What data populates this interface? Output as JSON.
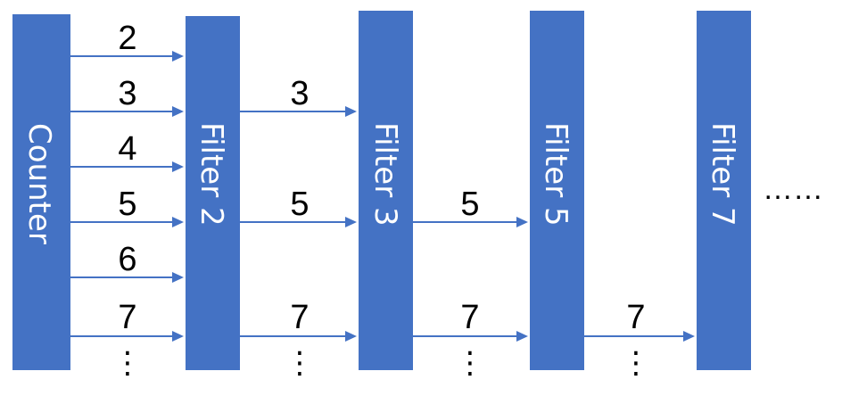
{
  "stages": [
    {
      "label": "Counter"
    },
    {
      "label": "Filter 2"
    },
    {
      "label": "Filter 3"
    },
    {
      "label": "Filter 5"
    },
    {
      "label": "Filter 7"
    }
  ],
  "links": [
    {
      "from": 0,
      "to": 1,
      "values": [
        "2",
        "3",
        "4",
        "5",
        "6",
        "7"
      ]
    },
    {
      "from": 1,
      "to": 2,
      "values": [
        "3",
        "5",
        "7"
      ]
    },
    {
      "from": 2,
      "to": 3,
      "values": [
        "5",
        "7"
      ]
    },
    {
      "from": 3,
      "to": 4,
      "values": [
        "7"
      ]
    }
  ],
  "continuation": {
    "vertical": "⋮",
    "horizontal": "……"
  },
  "colors": {
    "stage_fill": "#4472C4",
    "stage_text": "#FFFFFF",
    "arrow": "#4472C4",
    "number_text": "#000000"
  }
}
